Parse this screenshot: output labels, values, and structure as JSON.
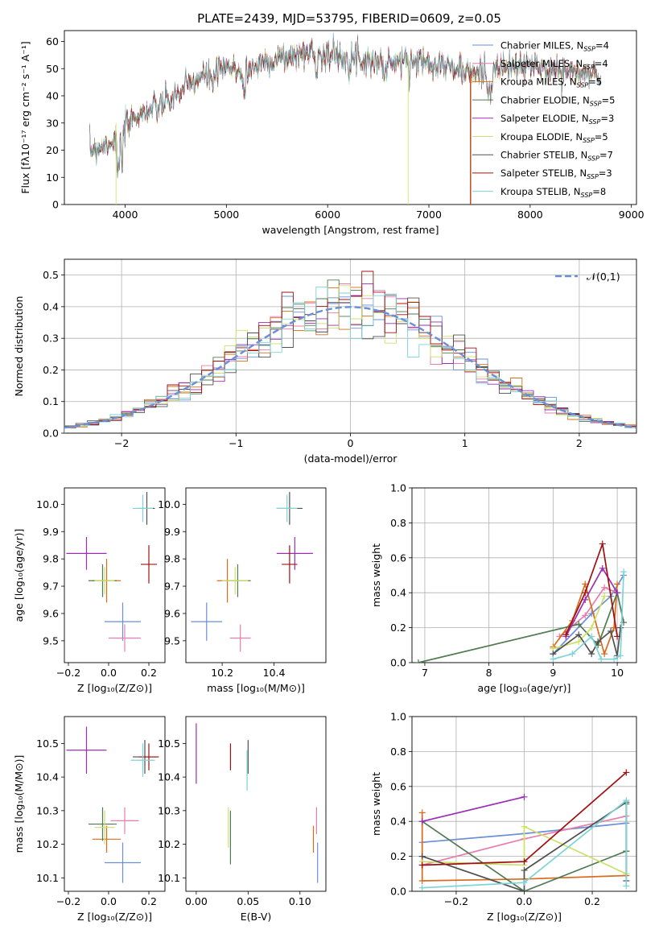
{
  "figure_title": "PLATE=2439, MJD=53795, FIBERID=0609, z=0.05",
  "colors": [
    "#6a8ed8",
    "#e87dad",
    "#d86b1e",
    "#4f7a4f",
    "#9a2fb3",
    "#cfe06a",
    "#505050",
    "#a01010",
    "#7dd3d8"
  ],
  "chart_data": [
    {
      "id": "spectrum",
      "type": "line",
      "xlabel": "wavelength [Angstrom, rest frame]",
      "ylabel": "Flux [fλ10⁻¹⁷ erg cm⁻² s⁻¹ A⁻¹]",
      "xlim": [
        3400,
        9050
      ],
      "ylim": [
        0,
        64
      ],
      "xticks": [
        4000,
        5000,
        6000,
        7000,
        8000,
        9000
      ],
      "yticks": [
        0,
        10,
        20,
        30,
        40,
        50,
        60
      ],
      "legend_position": "upper-right",
      "continuum": {
        "x": [
          3650,
          3800,
          3950,
          4100,
          4300,
          4500,
          4700,
          5000,
          5200,
          5400,
          5600,
          5800,
          6000,
          6300,
          6600,
          6900,
          7100,
          7400,
          7700,
          8000,
          8300,
          8600,
          8700
        ],
        "y": [
          20,
          22,
          25,
          33,
          35,
          40,
          46,
          50,
          49,
          53,
          54,
          56,
          55,
          54,
          52,
          53,
          52,
          48,
          50,
          51,
          49,
          48,
          47
        ]
      },
      "series": [
        {
          "name": "Chabrier MILES, N_SSP=4"
        },
        {
          "name": "Salpeter MILES, N_SSP=4"
        },
        {
          "name": "Kroupa MILES, N_SSP=5"
        },
        {
          "name": "Chabrier ELODIE, N_SSP=5"
        },
        {
          "name": "Salpeter ELODIE, N_SSP=3"
        },
        {
          "name": "Kroupa ELODIE, N_SSP=5"
        },
        {
          "name": "Chabrier STELIB, N_SSP=7"
        },
        {
          "name": "Salpeter STELIB, N_SSP=3"
        },
        {
          "name": "Kroupa STELIB, N_SSP=8"
        }
      ]
    },
    {
      "id": "residuals",
      "type": "histogram",
      "xlabel": "(data-model)/error",
      "ylabel": "Normed distribution",
      "xlim": [
        -2.5,
        2.5
      ],
      "ylim": [
        0,
        0.55
      ],
      "xticks": [
        -2,
        -1,
        0,
        1,
        2
      ],
      "yticks": [
        0.0,
        0.1,
        0.2,
        0.3,
        0.4,
        0.5
      ],
      "grid": true,
      "legend_label": "𝒩(0,1)",
      "bin_width": 0.1
    },
    {
      "id": "age_vs_Z",
      "type": "errorbar",
      "xlabel": "Z [log₁₀(Z/Z⊙)]",
      "ylabel": "age  [log₁₀(age/yr)]",
      "xlim": [
        -0.22,
        0.28
      ],
      "ylim": [
        9.42,
        10.06
      ],
      "xticks": [
        -0.2,
        0.0,
        0.2
      ],
      "yticks": [
        9.5,
        9.6,
        9.7,
        9.8,
        9.9,
        10.0
      ],
      "points": [
        {
          "x": 0.07,
          "y": 9.57,
          "xerr": 0.09,
          "yerr": 0.07
        },
        {
          "x": 0.08,
          "y": 9.51,
          "xerr": 0.08,
          "yerr": 0.05
        },
        {
          "x": -0.01,
          "y": 9.72,
          "xerr": 0.07,
          "yerr": 0.08
        },
        {
          "x": -0.03,
          "y": 9.72,
          "xerr": 0.07,
          "yerr": 0.06
        },
        {
          "x": -0.11,
          "y": 9.82,
          "xerr": 0.1,
          "yerr": 0.06
        },
        {
          "x": -0.02,
          "y": 9.72,
          "xerr": 0.05,
          "yerr": 0.05
        },
        {
          "x": 0.19,
          "y": 9.985,
          "xerr": 0.04,
          "yerr": 0.06
        },
        {
          "x": 0.2,
          "y": 9.78,
          "xerr": 0.04,
          "yerr": 0.07
        },
        {
          "x": 0.17,
          "y": 9.985,
          "xerr": 0.05,
          "yerr": 0.05
        }
      ]
    },
    {
      "id": "age_vs_mass",
      "type": "errorbar",
      "xlabel": "mass [log₁₀(M/M⊙)]",
      "ylabel": "",
      "xlim": [
        10.06,
        10.6
      ],
      "ylim": [
        9.42,
        10.06
      ],
      "xticks": [
        10.2,
        10.4
      ],
      "yticks": [
        9.5,
        9.6,
        9.7,
        9.8,
        9.9,
        10.0
      ],
      "points": [
        {
          "x": 10.14,
          "y": 9.57,
          "xerr": 0.06,
          "yerr": 0.07
        },
        {
          "x": 10.27,
          "y": 9.51,
          "xerr": 0.04,
          "yerr": 0.05
        },
        {
          "x": 10.22,
          "y": 9.72,
          "xerr": 0.04,
          "yerr": 0.08
        },
        {
          "x": 10.26,
          "y": 9.72,
          "xerr": 0.05,
          "yerr": 0.06
        },
        {
          "x": 10.48,
          "y": 9.82,
          "xerr": 0.07,
          "yerr": 0.06
        },
        {
          "x": 10.25,
          "y": 9.72,
          "xerr": 0.05,
          "yerr": 0.05
        },
        {
          "x": 10.46,
          "y": 9.985,
          "xerr": 0.05,
          "yerr": 0.06
        },
        {
          "x": 10.46,
          "y": 9.78,
          "xerr": 0.03,
          "yerr": 0.07
        },
        {
          "x": 10.45,
          "y": 9.985,
          "xerr": 0.04,
          "yerr": 0.05
        }
      ]
    },
    {
      "id": "weight_vs_age",
      "type": "line",
      "xlabel": "age  [log₁₀(age/yr)]",
      "ylabel": "mass weight",
      "xlim": [
        6.8,
        10.3
      ],
      "ylim": [
        0,
        1
      ],
      "xticks": [
        7,
        8,
        9,
        10
      ],
      "yticks": [
        0.0,
        0.2,
        0.4,
        0.6,
        0.8,
        1.0
      ],
      "grid": true,
      "series": [
        {
          "x": [
            9.0,
            9.6,
            9.9,
            10.1
          ],
          "y": [
            0.05,
            0.28,
            0.38,
            0.5
          ]
        },
        {
          "x": [
            9.1,
            9.5,
            9.8,
            10.0
          ],
          "y": [
            0.15,
            0.27,
            0.43,
            0.4
          ]
        },
        {
          "x": [
            9.0,
            9.3,
            9.5,
            9.8,
            9.95,
            10.0
          ],
          "y": [
            0.09,
            0.24,
            0.45,
            0.05,
            0.2,
            0.45
          ]
        },
        {
          "x": [
            6.9,
            9.4,
            9.7,
            10.0,
            10.1
          ],
          "y": [
            0.0,
            0.22,
            0.1,
            0.4,
            0.23
          ]
        },
        {
          "x": [
            9.2,
            9.5,
            9.77,
            10.0
          ],
          "y": [
            0.15,
            0.36,
            0.54,
            0.4
          ]
        },
        {
          "x": [
            9.0,
            9.4,
            9.6,
            9.8
          ],
          "y": [
            0.08,
            0.12,
            0.2,
            0.38
          ]
        },
        {
          "x": [
            9.0,
            9.4,
            9.6,
            9.7,
            9.9,
            10.0,
            10.05
          ],
          "y": [
            0.05,
            0.16,
            0.05,
            0.12,
            0.18,
            0.04,
            0.2
          ]
        },
        {
          "x": [
            9.2,
            9.5,
            9.77,
            10.0
          ],
          "y": [
            0.16,
            0.4,
            0.68,
            0.15
          ]
        },
        {
          "x": [
            9.0,
            9.3,
            9.6,
            9.75,
            9.95,
            10.05,
            10.1
          ],
          "y": [
            0.02,
            0.05,
            0.15,
            0.02,
            0.02,
            0.04,
            0.52
          ]
        }
      ]
    },
    {
      "id": "mass_vs_Z",
      "type": "errorbar",
      "xlabel": "Z [log₁₀(Z/Z⊙)]",
      "ylabel": "mass [log₁₀(M/M⊙)]",
      "xlim": [
        -0.22,
        0.28
      ],
      "ylim": [
        10.06,
        10.58
      ],
      "xticks": [
        -0.2,
        0.0,
        0.2
      ],
      "yticks": [
        10.1,
        10.2,
        10.3,
        10.4,
        10.5
      ],
      "points": [
        {
          "x": 0.07,
          "y": 10.145,
          "xerr": 0.09,
          "yerr": 0.06
        },
        {
          "x": 0.08,
          "y": 10.27,
          "xerr": 0.07,
          "yerr": 0.04
        },
        {
          "x": -0.01,
          "y": 10.215,
          "xerr": 0.07,
          "yerr": 0.04
        },
        {
          "x": -0.03,
          "y": 10.26,
          "xerr": 0.07,
          "yerr": 0.05
        },
        {
          "x": -0.11,
          "y": 10.48,
          "xerr": 0.1,
          "yerr": 0.07
        },
        {
          "x": -0.02,
          "y": 10.25,
          "xerr": 0.05,
          "yerr": 0.05
        },
        {
          "x": 0.18,
          "y": 10.46,
          "xerr": 0.06,
          "yerr": 0.05
        },
        {
          "x": 0.2,
          "y": 10.46,
          "xerr": 0.05,
          "yerr": 0.04
        },
        {
          "x": 0.17,
          "y": 10.45,
          "xerr": 0.06,
          "yerr": 0.05
        }
      ]
    },
    {
      "id": "mass_vs_EBV",
      "type": "errorbar",
      "xlabel": "E(B-V)",
      "ylabel": "",
      "xlim": [
        -0.01,
        0.125
      ],
      "ylim": [
        10.06,
        10.58
      ],
      "xticks": [
        0.0,
        0.05,
        0.1
      ],
      "yticks": [
        10.1,
        10.2,
        10.3,
        10.4,
        10.5
      ],
      "points": [
        {
          "x": 0.117,
          "y": 10.145,
          "xerr": 0.0,
          "yerr": 0.06
        },
        {
          "x": 0.116,
          "y": 10.27,
          "xerr": 0.0,
          "yerr": 0.04
        },
        {
          "x": 0.113,
          "y": 10.215,
          "xerr": 0.0,
          "yerr": 0.04
        },
        {
          "x": 0.033,
          "y": 10.22,
          "xerr": 0.0,
          "yerr": 0.08
        },
        {
          "x": 0.0,
          "y": 10.47,
          "xerr": 0.0,
          "yerr": 0.09
        },
        {
          "x": 0.031,
          "y": 10.25,
          "xerr": 0.0,
          "yerr": 0.06
        },
        {
          "x": 0.05,
          "y": 10.46,
          "xerr": 0.0,
          "yerr": 0.05
        },
        {
          "x": 0.033,
          "y": 10.46,
          "xerr": 0.0,
          "yerr": 0.04
        },
        {
          "x": 0.049,
          "y": 10.42,
          "xerr": 0.0,
          "yerr": 0.06
        }
      ]
    },
    {
      "id": "weight_vs_Z",
      "type": "line",
      "xlabel": "Z [log₁₀(Z/Z⊙)]",
      "ylabel": "mass weight",
      "xlim": [
        -0.33,
        0.33
      ],
      "ylim": [
        0,
        1
      ],
      "xticks": [
        -0.2,
        0.0,
        0.2
      ],
      "yticks": [
        0.0,
        0.2,
        0.4,
        0.6,
        0.8,
        1.0
      ],
      "grid": true,
      "series": [
        {
          "x": [
            -0.3,
            0.0,
            0.3
          ],
          "y": [
            0.28,
            0.33,
            0.39
          ]
        },
        {
          "x": [
            -0.3,
            0.0,
            0.3
          ],
          "y": [
            0.15,
            0.3,
            0.43
          ]
        },
        {
          "x": [
            -0.3,
            -0.3,
            0.0,
            0.3,
            0.3
          ],
          "y": [
            0.45,
            0.06,
            0.07,
            0.09,
            0.23
          ]
        },
        {
          "x": [
            -0.3,
            0.0,
            0.3,
            0.3
          ],
          "y": [
            0.4,
            0.0,
            0.23,
            0.5
          ]
        },
        {
          "x": [
            -0.3,
            0.0
          ],
          "y": [
            0.4,
            0.54
          ]
        },
        {
          "x": [
            -0.3,
            0.0,
            0.0,
            0.3
          ],
          "y": [
            0.17,
            0.15,
            0.37,
            0.1
          ]
        },
        {
          "x": [
            -0.3,
            0.0,
            0.0,
            0.3,
            0.3
          ],
          "y": [
            0.2,
            0.0,
            0.12,
            0.51,
            0.06
          ]
        },
        {
          "x": [
            -0.3,
            0.0,
            0.3
          ],
          "y": [
            0.15,
            0.17,
            0.68
          ]
        },
        {
          "x": [
            -0.3,
            0.0,
            0.3,
            0.3
          ],
          "y": [
            0.02,
            0.05,
            0.52,
            0.03
          ]
        }
      ]
    }
  ]
}
